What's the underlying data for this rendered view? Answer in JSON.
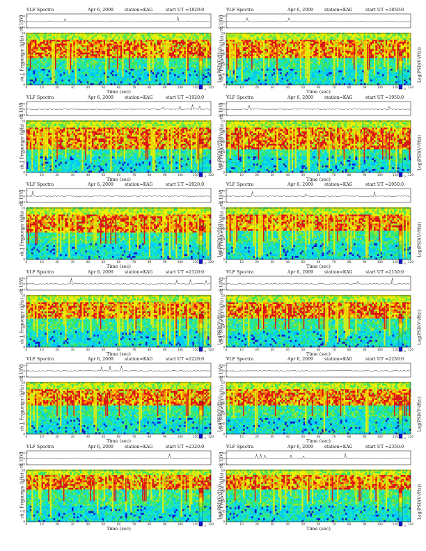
{
  "colors": {
    "colormap": [
      "#1414c8",
      "#00c8ff",
      "#19e6c8",
      "#3de661",
      "#9be62c",
      "#f0f000",
      "#ff8c00",
      "#dc1414"
    ],
    "axis": "#222222",
    "waveform": "#333333"
  },
  "chart_data": [
    {
      "type": "heatmap",
      "title": "VLF Spectra",
      "date": "Apr 6, 2009",
      "station": "station=KAG",
      "start_ut": "start UT =1820:0",
      "channel_label": "ch 1 (V)",
      "channel_ticks": [
        "0.30",
        "0.00",
        "-0.30"
      ],
      "ylabel": "ch 1\nFrequency (kHz)",
      "yticks": [
        "0",
        "2",
        "4",
        "6",
        "8",
        "10"
      ],
      "ylim": [
        0,
        10
      ],
      "xlabel": "Time (sec)",
      "xticks": [
        "0",
        "10",
        "20",
        "30",
        "40",
        "50",
        "60",
        "70",
        "80",
        "90",
        "100",
        "110",
        "120"
      ],
      "xlim": [
        0,
        120
      ],
      "colorbar_label": "Log(PSD(V²/Hz))",
      "colorbar_ticks": [
        "-5",
        "-4",
        "-3"
      ],
      "emission_band_khz": [
        5,
        8.5
      ],
      "cutoff_khz": 9.8
    },
    {
      "type": "heatmap",
      "title": "VLF Spectra",
      "date": "Apr 6, 2009",
      "station": "station=KAG",
      "start_ut": "start UT =1850:0",
      "channel_label": "ch 1 (V)",
      "channel_ticks": [
        "0.30",
        "0.00",
        "-0.30"
      ],
      "ylabel": "ch 1\nFrequency (kHz)",
      "yticks": [
        "0",
        "2",
        "4",
        "6",
        "8",
        "10"
      ],
      "ylim": [
        0,
        10
      ],
      "xlabel": "Time (sec)",
      "xticks": [
        "0",
        "10",
        "20",
        "30",
        "40",
        "50",
        "60",
        "70",
        "80",
        "90",
        "100",
        "110",
        "120"
      ],
      "xlim": [
        0,
        120
      ],
      "colorbar_label": "Log(PSD(V²/Hz))",
      "colorbar_ticks": [
        "-5",
        "-4",
        "-3"
      ],
      "emission_band_khz": [
        5,
        8.5
      ],
      "cutoff_khz": 9.8
    },
    {
      "type": "heatmap",
      "title": "VLF Spectra",
      "date": "Apr 6, 2009",
      "station": "station=KAG",
      "start_ut": "start UT =1920:0",
      "channel_label": "ch 1 (V)",
      "channel_ticks": [
        "0.30",
        "0.00",
        "-0.30"
      ],
      "ylabel": "ch 1\nFrequency (kHz)",
      "yticks": [
        "0",
        "2",
        "4",
        "6",
        "8",
        "10"
      ],
      "ylim": [
        0,
        10
      ],
      "xlabel": "Time (sec)",
      "xticks": [
        "0",
        "10",
        "20",
        "30",
        "40",
        "50",
        "60",
        "70",
        "80",
        "90",
        "100",
        "110",
        "120"
      ],
      "xlim": [
        0,
        120
      ],
      "colorbar_label": "Log(PSD(V²/Hz))",
      "colorbar_ticks": [
        "-5",
        "-4",
        "-3"
      ],
      "emission_band_khz": [
        4.5,
        8.5
      ],
      "cutoff_khz": 9.8
    },
    {
      "type": "heatmap",
      "title": "VLF Spectra",
      "date": "Apr 6, 2009",
      "station": "station=KAG",
      "start_ut": "start UT =1950:0",
      "channel_label": "ch 1 (V)",
      "channel_ticks": [
        "0.30",
        "0.00",
        "-0.30"
      ],
      "ylabel": "ch 1\nFrequency (kHz)",
      "yticks": [
        "0",
        "2",
        "4",
        "6",
        "8",
        "10"
      ],
      "ylim": [
        0,
        10
      ],
      "xlabel": "Time (sec)",
      "xticks": [
        "0",
        "10",
        "20",
        "30",
        "40",
        "50",
        "60",
        "70",
        "80",
        "90",
        "100",
        "110",
        "120"
      ],
      "xlim": [
        0,
        120
      ],
      "colorbar_label": "Log(PSD(V²/Hz))",
      "colorbar_ticks": [
        "-5",
        "-4",
        "-3"
      ],
      "emission_band_khz": [
        4.5,
        8.5
      ],
      "cutoff_khz": 9.8
    },
    {
      "type": "heatmap",
      "title": "VLF Spectra",
      "date": "Apr 6, 2009",
      "station": "station=KAG",
      "start_ut": "start UT =2020:0",
      "channel_label": "ch 1 (V)",
      "channel_ticks": [
        "0.30",
        "0.00",
        "-0.30"
      ],
      "ylabel": "ch 1\nFrequency (kHz)",
      "yticks": [
        "0",
        "2",
        "4",
        "6",
        "8",
        "10"
      ],
      "ylim": [
        0,
        10
      ],
      "xlabel": "Time (sec)",
      "xticks": [
        "0",
        "10",
        "20",
        "30",
        "40",
        "50",
        "60",
        "70",
        "80",
        "90",
        "100",
        "110",
        "120"
      ],
      "xlim": [
        0,
        120
      ],
      "colorbar_label": "Log(PSD(V²/Hz))",
      "colorbar_ticks": [
        "-5",
        "-4",
        "-3"
      ],
      "emission_band_khz": [
        5,
        8.5
      ],
      "cutoff_khz": 9.8
    },
    {
      "type": "heatmap",
      "title": "VLF Spectra",
      "date": "Apr 6, 2009",
      "station": "station=KAG",
      "start_ut": "start UT =2050:0",
      "channel_label": "ch 1 (V)",
      "channel_ticks": [
        "0.30",
        "0.00",
        "-0.30"
      ],
      "ylabel": "ch 1\nFrequency (kHz)",
      "yticks": [
        "0",
        "2",
        "4",
        "6",
        "8",
        "10"
      ],
      "ylim": [
        0,
        10
      ],
      "xlabel": "Time (sec)",
      "xticks": [
        "0",
        "10",
        "20",
        "30",
        "40",
        "50",
        "60",
        "70",
        "80",
        "90",
        "100",
        "110",
        "120"
      ],
      "xlim": [
        0,
        120
      ],
      "colorbar_label": "Log(PSD(V²/Hz))",
      "colorbar_ticks": [
        "-5",
        "-4",
        "-3"
      ],
      "emission_band_khz": [
        5.5,
        8.5
      ],
      "cutoff_khz": 9.8
    },
    {
      "type": "heatmap",
      "title": "VLF Spectra",
      "date": "Apr 6, 2009",
      "station": "station=KAG",
      "start_ut": "start UT =2120:0",
      "channel_label": "ch 1 (V)",
      "channel_ticks": [
        "0.30",
        "0.00",
        "-0.30"
      ],
      "ylabel": "ch 1\nFrequency (kHz)",
      "yticks": [
        "0",
        "2",
        "4",
        "6",
        "8",
        "10"
      ],
      "ylim": [
        0,
        10
      ],
      "xlabel": "Time (sec)",
      "xticks": [
        "0",
        "10",
        "20",
        "30",
        "40",
        "50",
        "60",
        "70",
        "80",
        "90",
        "100",
        "110",
        "120"
      ],
      "xlim": [
        0,
        120
      ],
      "colorbar_label": "Log(PSD(V²/Hz))",
      "colorbar_ticks": [
        "-5",
        "-4",
        "-3"
      ],
      "emission_band_khz": [
        5.5,
        8.5
      ],
      "cutoff_khz": 9.8
    },
    {
      "type": "heatmap",
      "title": "VLF Spectra",
      "date": "Apr 6, 2009",
      "station": "station=KAG",
      "start_ut": "start UT =2150:0",
      "channel_label": "ch 1 (V)",
      "channel_ticks": [
        "0.30",
        "0.00",
        "-0.30"
      ],
      "ylabel": "ch 1\nFrequency (kHz)",
      "yticks": [
        "0",
        "2",
        "4",
        "6",
        "8",
        "10"
      ],
      "ylim": [
        0,
        10
      ],
      "xlabel": "Time (sec)",
      "xticks": [
        "0",
        "10",
        "20",
        "30",
        "40",
        "50",
        "60",
        "70",
        "80",
        "90",
        "100",
        "110",
        "120"
      ],
      "xlim": [
        0,
        120
      ],
      "colorbar_label": "Log(PSD(V²/Hz))",
      "colorbar_ticks": [
        "-5",
        "-4",
        "-3"
      ],
      "emission_band_khz": [
        5.5,
        8.5
      ],
      "cutoff_khz": 9.8
    },
    {
      "type": "heatmap",
      "title": "VLF Spectra",
      "date": "Apr 6, 2009",
      "station": "station=KAG",
      "start_ut": "start UT =2220:0",
      "channel_label": "ch 1 (V)",
      "channel_ticks": [
        "0.30",
        "0.00",
        "-0.30"
      ],
      "ylabel": "ch 1\nFrequency (kHz)",
      "yticks": [
        "0",
        "2",
        "4",
        "6",
        "8",
        "10"
      ],
      "ylim": [
        0,
        10
      ],
      "xlabel": "Time (sec)",
      "xticks": [
        "0",
        "10",
        "20",
        "30",
        "40",
        "50",
        "60",
        "70",
        "80",
        "90",
        "100",
        "110",
        "120"
      ],
      "xlim": [
        0,
        120
      ],
      "colorbar_label": "Log(PSD(V²/Hz))",
      "colorbar_ticks": [
        "-5",
        "-4",
        "-3"
      ],
      "emission_band_khz": [
        5.5,
        8.5
      ],
      "cutoff_khz": 9.8
    },
    {
      "type": "heatmap",
      "title": "VLF Spectra",
      "date": "Apr 6, 2009",
      "station": "station=KAG",
      "start_ut": "start UT =2250:0",
      "channel_label": "ch 1 (V)",
      "channel_ticks": [
        "0.30",
        "0.00",
        "-0.30"
      ],
      "ylabel": "ch 1\nFrequency (kHz)",
      "yticks": [
        "0",
        "2",
        "4",
        "6",
        "8",
        "10"
      ],
      "ylim": [
        0,
        10
      ],
      "xlabel": "Time (sec)",
      "xticks": [
        "0",
        "10",
        "20",
        "30",
        "40",
        "50",
        "60",
        "70",
        "80",
        "90",
        "100",
        "110",
        "120"
      ],
      "xlim": [
        0,
        120
      ],
      "colorbar_label": "Log(PSD(V²/Hz))",
      "colorbar_ticks": [
        "-5",
        "-4",
        "-3"
      ],
      "emission_band_khz": [
        5.5,
        8.5
      ],
      "cutoff_khz": 9.8
    },
    {
      "type": "heatmap",
      "title": "VLF Spectra",
      "date": "Apr 6, 2009",
      "station": "station=KAG",
      "start_ut": "start UT =2320:0",
      "channel_label": "ch 1 (V)",
      "channel_ticks": [
        "0.30",
        "0.00",
        "-0.30"
      ],
      "ylabel": "ch 1\nFrequency (kHz)",
      "yticks": [
        "0",
        "2",
        "4",
        "6",
        "8",
        "10"
      ],
      "ylim": [
        0,
        10
      ],
      "xlabel": "Time (sec)",
      "xticks": [
        "0",
        "10",
        "20",
        "30",
        "40",
        "50",
        "60",
        "70",
        "80",
        "90",
        "100",
        "110",
        "120"
      ],
      "xlim": [
        0,
        120
      ],
      "colorbar_label": "Log(PSD(V²/Hz))",
      "colorbar_ticks": [
        "-5",
        "-4",
        "-3"
      ],
      "emission_band_khz": [
        6,
        9
      ],
      "cutoff_khz": 9.8
    },
    {
      "type": "heatmap",
      "title": "VLF Spectra",
      "date": "Apr 6, 2009",
      "station": "station=KAG",
      "start_ut": "start UT =2350:0",
      "channel_label": "ch 1 (V)",
      "channel_ticks": [
        "0.30",
        "0.00",
        "-0.30"
      ],
      "ylabel": "ch 1\nFrequency (kHz)",
      "yticks": [
        "0",
        "2",
        "4",
        "6",
        "8",
        "10"
      ],
      "ylim": [
        0,
        10
      ],
      "xlabel": "Time (sec)",
      "xticks": [
        "0",
        "10",
        "20",
        "30",
        "40",
        "50",
        "60",
        "70",
        "80",
        "90",
        "100",
        "110",
        "120"
      ],
      "xlim": [
        0,
        120
      ],
      "colorbar_label": "Log(PSD(V²/Hz))",
      "colorbar_ticks": [
        "-5",
        "-4",
        "-3"
      ],
      "emission_band_khz": [
        6,
        9
      ],
      "cutoff_khz": 9.8
    }
  ]
}
